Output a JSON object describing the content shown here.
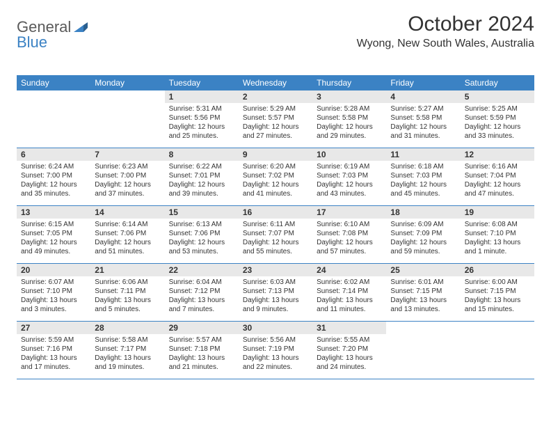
{
  "logo": {
    "text1": "General",
    "text2": "Blue"
  },
  "title": "October 2024",
  "location": "Wyong, New South Wales, Australia",
  "colors": {
    "header_bg": "#3b82c4",
    "header_text": "#ffffff",
    "number_bar_bg": "#e8e8e8",
    "text": "#333333",
    "logo_gray": "#5a5a5a",
    "logo_blue": "#3b82c4"
  },
  "dayHeaders": [
    "Sunday",
    "Monday",
    "Tuesday",
    "Wednesday",
    "Thursday",
    "Friday",
    "Saturday"
  ],
  "weeks": [
    [
      null,
      null,
      {
        "num": "1",
        "sunrise": "5:31 AM",
        "sunset": "5:56 PM",
        "daylight": "12 hours and 25 minutes."
      },
      {
        "num": "2",
        "sunrise": "5:29 AM",
        "sunset": "5:57 PM",
        "daylight": "12 hours and 27 minutes."
      },
      {
        "num": "3",
        "sunrise": "5:28 AM",
        "sunset": "5:58 PM",
        "daylight": "12 hours and 29 minutes."
      },
      {
        "num": "4",
        "sunrise": "5:27 AM",
        "sunset": "5:58 PM",
        "daylight": "12 hours and 31 minutes."
      },
      {
        "num": "5",
        "sunrise": "5:25 AM",
        "sunset": "5:59 PM",
        "daylight": "12 hours and 33 minutes."
      }
    ],
    [
      {
        "num": "6",
        "sunrise": "6:24 AM",
        "sunset": "7:00 PM",
        "daylight": "12 hours and 35 minutes."
      },
      {
        "num": "7",
        "sunrise": "6:23 AM",
        "sunset": "7:00 PM",
        "daylight": "12 hours and 37 minutes."
      },
      {
        "num": "8",
        "sunrise": "6:22 AM",
        "sunset": "7:01 PM",
        "daylight": "12 hours and 39 minutes."
      },
      {
        "num": "9",
        "sunrise": "6:20 AM",
        "sunset": "7:02 PM",
        "daylight": "12 hours and 41 minutes."
      },
      {
        "num": "10",
        "sunrise": "6:19 AM",
        "sunset": "7:03 PM",
        "daylight": "12 hours and 43 minutes."
      },
      {
        "num": "11",
        "sunrise": "6:18 AM",
        "sunset": "7:03 PM",
        "daylight": "12 hours and 45 minutes."
      },
      {
        "num": "12",
        "sunrise": "6:16 AM",
        "sunset": "7:04 PM",
        "daylight": "12 hours and 47 minutes."
      }
    ],
    [
      {
        "num": "13",
        "sunrise": "6:15 AM",
        "sunset": "7:05 PM",
        "daylight": "12 hours and 49 minutes."
      },
      {
        "num": "14",
        "sunrise": "6:14 AM",
        "sunset": "7:06 PM",
        "daylight": "12 hours and 51 minutes."
      },
      {
        "num": "15",
        "sunrise": "6:13 AM",
        "sunset": "7:06 PM",
        "daylight": "12 hours and 53 minutes."
      },
      {
        "num": "16",
        "sunrise": "6:11 AM",
        "sunset": "7:07 PM",
        "daylight": "12 hours and 55 minutes."
      },
      {
        "num": "17",
        "sunrise": "6:10 AM",
        "sunset": "7:08 PM",
        "daylight": "12 hours and 57 minutes."
      },
      {
        "num": "18",
        "sunrise": "6:09 AM",
        "sunset": "7:09 PM",
        "daylight": "12 hours and 59 minutes."
      },
      {
        "num": "19",
        "sunrise": "6:08 AM",
        "sunset": "7:10 PM",
        "daylight": "13 hours and 1 minute."
      }
    ],
    [
      {
        "num": "20",
        "sunrise": "6:07 AM",
        "sunset": "7:10 PM",
        "daylight": "13 hours and 3 minutes."
      },
      {
        "num": "21",
        "sunrise": "6:06 AM",
        "sunset": "7:11 PM",
        "daylight": "13 hours and 5 minutes."
      },
      {
        "num": "22",
        "sunrise": "6:04 AM",
        "sunset": "7:12 PM",
        "daylight": "13 hours and 7 minutes."
      },
      {
        "num": "23",
        "sunrise": "6:03 AM",
        "sunset": "7:13 PM",
        "daylight": "13 hours and 9 minutes."
      },
      {
        "num": "24",
        "sunrise": "6:02 AM",
        "sunset": "7:14 PM",
        "daylight": "13 hours and 11 minutes."
      },
      {
        "num": "25",
        "sunrise": "6:01 AM",
        "sunset": "7:15 PM",
        "daylight": "13 hours and 13 minutes."
      },
      {
        "num": "26",
        "sunrise": "6:00 AM",
        "sunset": "7:15 PM",
        "daylight": "13 hours and 15 minutes."
      }
    ],
    [
      {
        "num": "27",
        "sunrise": "5:59 AM",
        "sunset": "7:16 PM",
        "daylight": "13 hours and 17 minutes."
      },
      {
        "num": "28",
        "sunrise": "5:58 AM",
        "sunset": "7:17 PM",
        "daylight": "13 hours and 19 minutes."
      },
      {
        "num": "29",
        "sunrise": "5:57 AM",
        "sunset": "7:18 PM",
        "daylight": "13 hours and 21 minutes."
      },
      {
        "num": "30",
        "sunrise": "5:56 AM",
        "sunset": "7:19 PM",
        "daylight": "13 hours and 22 minutes."
      },
      {
        "num": "31",
        "sunrise": "5:55 AM",
        "sunset": "7:20 PM",
        "daylight": "13 hours and 24 minutes."
      },
      null,
      null
    ]
  ],
  "labels": {
    "sunrise": "Sunrise:",
    "sunset": "Sunset:",
    "daylight": "Daylight:"
  }
}
